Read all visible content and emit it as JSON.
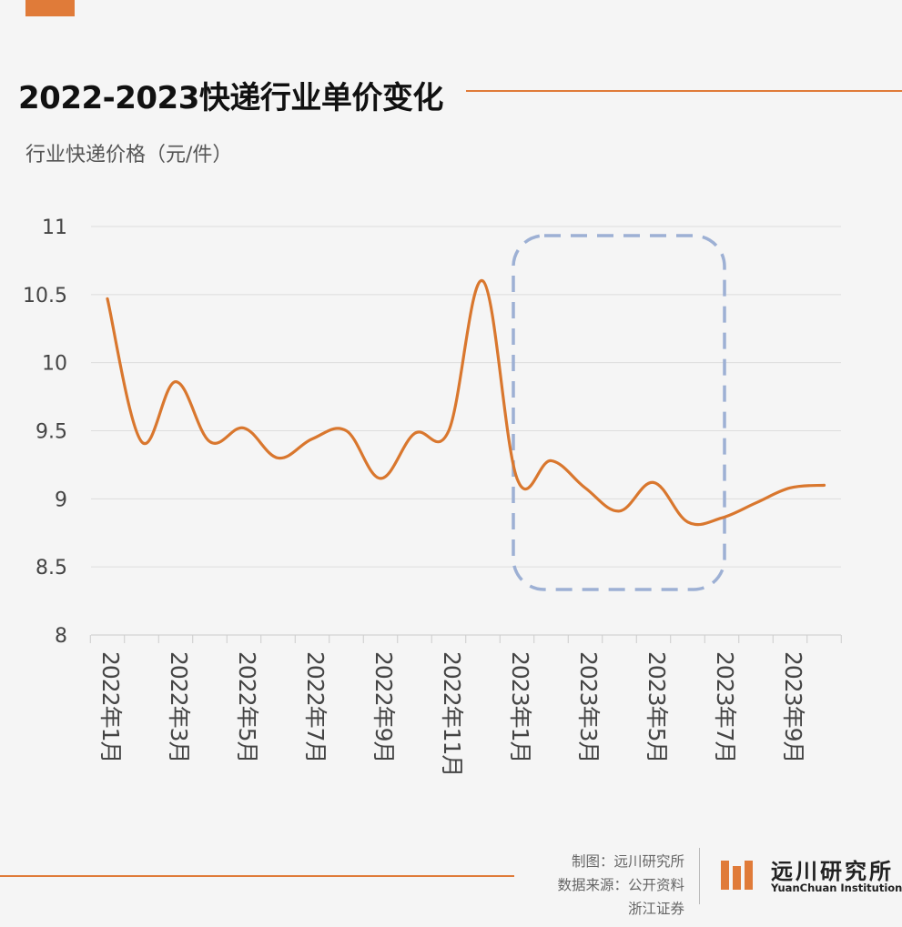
{
  "colors": {
    "accent": "#e07b39",
    "line": "#d9772e",
    "highlight": "#9db0d4",
    "grid": "#dddddd"
  },
  "title": "2022-2023快递行业单价变化",
  "credits": {
    "maker": "制图：远川研究所",
    "source_line1": "数据来源：公开资料",
    "source_line2": "浙江证券"
  },
  "logo": {
    "name_cn": "远川研究所",
    "name_en": "YuanChuan Institution"
  },
  "chart_data": {
    "type": "line",
    "title": "2022-2023快递行业单价变化",
    "ylabel": "行业快递价格（元/件）",
    "xlabel": "",
    "ylim": [
      8,
      11
    ],
    "yticks": [
      "8",
      "8.5",
      "9",
      "9.5",
      "10",
      "10.5",
      "11"
    ],
    "xticks": [
      "2022年1月",
      "2022年3月",
      "2022年5月",
      "2022年7月",
      "2022年9月",
      "2022年11月",
      "2023年1月",
      "2023年3月",
      "2023年5月",
      "2023年7月",
      "2023年9月"
    ],
    "grid": true,
    "highlight": {
      "from": "2023年1月",
      "to": "2023年7月"
    },
    "series": [
      {
        "x": [
          "2022年1月",
          "2022年2月",
          "2022年3月",
          "2022年4月",
          "2022年5月",
          "2022年6月",
          "2022年7月",
          "2022年8月",
          "2022年9月",
          "2022年10月",
          "2022年11月",
          "2022年12月",
          "2023年1月",
          "2023年2月",
          "2023年3月",
          "2023年4月",
          "2023年5月",
          "2023年6月",
          "2023年7月",
          "2023年8月",
          "2023年9月",
          "2023年10月"
        ],
        "values": [
          10.47,
          9.42,
          9.86,
          9.42,
          9.52,
          9.3,
          9.44,
          9.5,
          9.15,
          9.48,
          9.5,
          10.6,
          9.15,
          9.28,
          9.08,
          8.91,
          9.12,
          8.83,
          8.86,
          8.97,
          9.08,
          9.1
        ]
      }
    ]
  }
}
